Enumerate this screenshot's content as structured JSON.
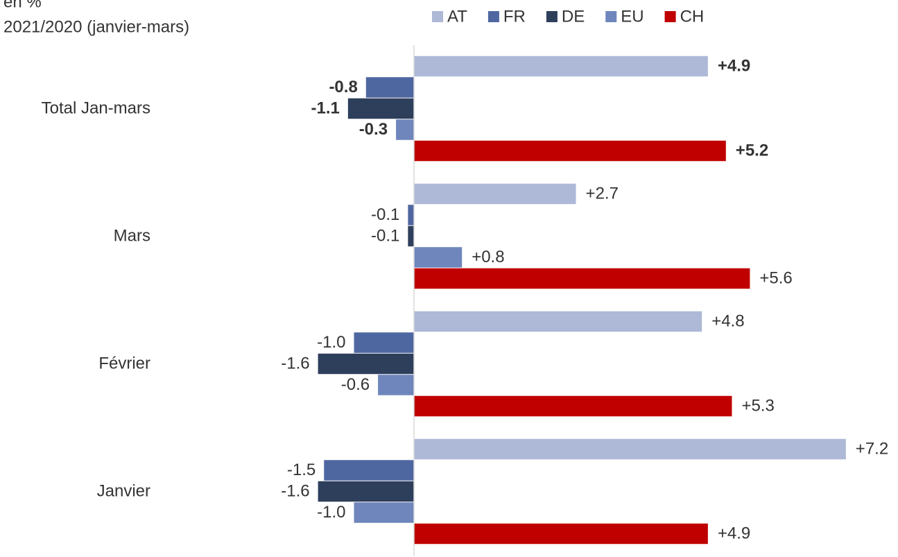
{
  "chart_data": {
    "type": "bar",
    "orientation": "horizontal",
    "title": "en %",
    "subtitle": "2021/2020  (janvier-mars)",
    "categories": [
      "Total Jan-mars",
      "Mars",
      "Février",
      "Janvier"
    ],
    "series": [
      {
        "name": "AT",
        "color": "#adb9d6",
        "values": [
          4.9,
          2.7,
          4.8,
          7.2
        ],
        "value_labels": [
          "+4.9",
          "+2.7",
          "+4.8",
          "+7.2"
        ]
      },
      {
        "name": "FR",
        "color": "#4f67a0",
        "values": [
          -0.8,
          -0.1,
          -1.0,
          -1.5
        ],
        "value_labels": [
          "-0.8",
          "-0.1",
          "-1.0",
          "-1.5"
        ]
      },
      {
        "name": "DE",
        "color": "#2e3f5c",
        "values": [
          -1.1,
          -0.1,
          -1.6,
          -1.6
        ],
        "value_labels": [
          "-1.1",
          "-0.1",
          "-1.6",
          "-1.6"
        ]
      },
      {
        "name": "EU",
        "color": "#6e86bc",
        "values": [
          -0.3,
          0.8,
          -0.6,
          -1.0
        ],
        "value_labels": [
          "-0.3",
          "+0.8",
          "-0.6",
          "-1.0"
        ]
      },
      {
        "name": "CH",
        "color": "#c00000",
        "values": [
          5.2,
          5.6,
          5.3,
          4.9
        ],
        "value_labels": [
          "+5.2",
          "+5.6",
          "+5.3",
          "+4.9"
        ]
      }
    ],
    "xlim": [
      -2,
      8
    ],
    "legend": "top"
  }
}
